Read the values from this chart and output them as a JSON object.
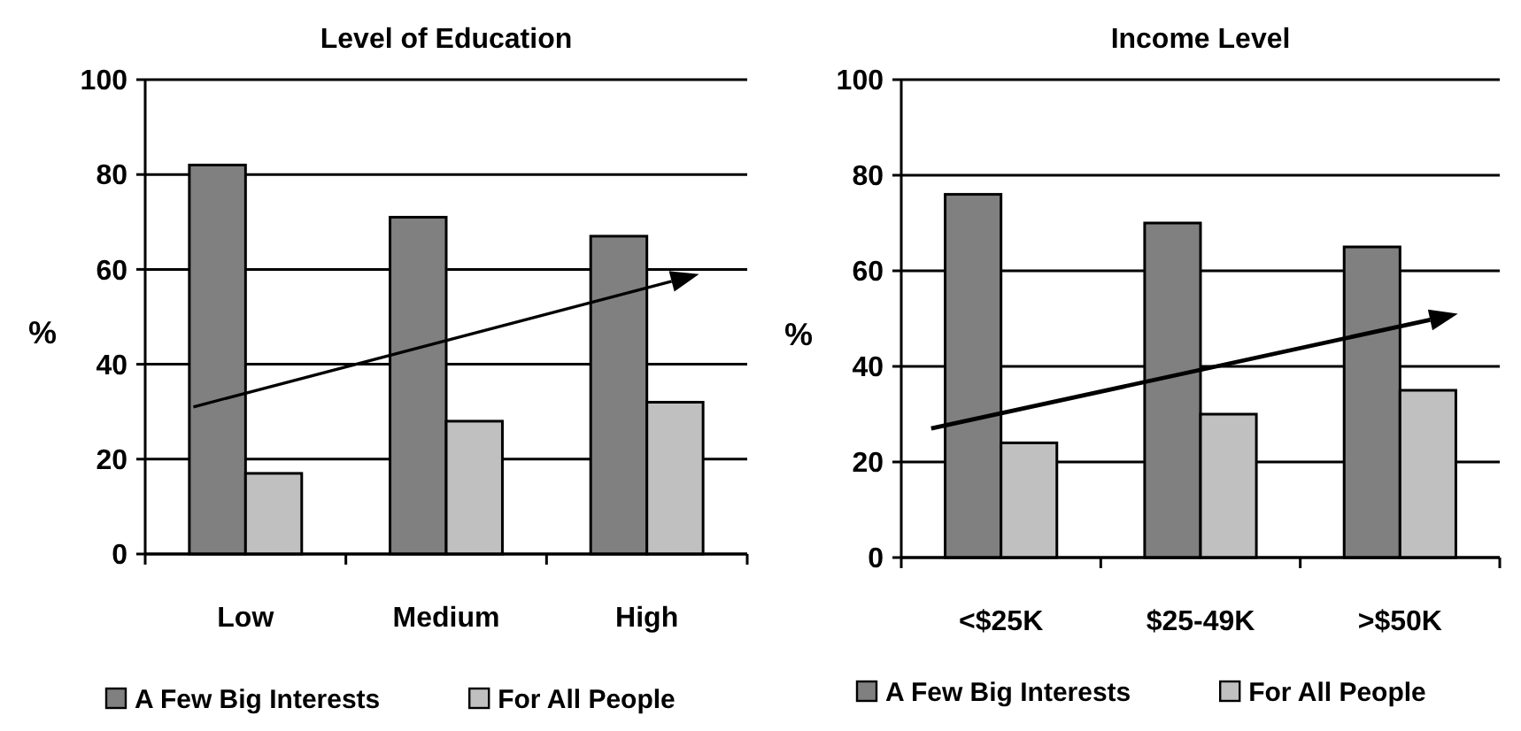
{
  "chart_data": [
    {
      "type": "bar",
      "title": "Level of Education",
      "ylabel": "%",
      "categories": [
        "Low",
        "Medium",
        "High"
      ],
      "series": [
        {
          "name": "A Few Big Interests",
          "color": "#808080",
          "values": [
            82,
            71,
            67
          ]
        },
        {
          "name": "For All People",
          "color": "#c0c0c0",
          "values": [
            17,
            28,
            32
          ]
        }
      ],
      "ylim": [
        0,
        100
      ],
      "yticks": [
        0,
        20,
        40,
        60,
        80,
        100
      ],
      "grid": "y",
      "legend": "bottom"
    },
    {
      "type": "bar",
      "title": "Income Level",
      "ylabel": "%",
      "categories": [
        "<$25K",
        "$25-49K",
        ">$50K"
      ],
      "series": [
        {
          "name": "A Few Big Interests",
          "color": "#808080",
          "values": [
            76,
            70,
            65
          ]
        },
        {
          "name": "For All People",
          "color": "#c0c0c0",
          "values": [
            24,
            30,
            35
          ]
        }
      ],
      "ylim": [
        0,
        100
      ],
      "yticks": [
        0,
        20,
        40,
        60,
        80,
        100
      ],
      "grid": "y",
      "legend": "bottom"
    }
  ]
}
